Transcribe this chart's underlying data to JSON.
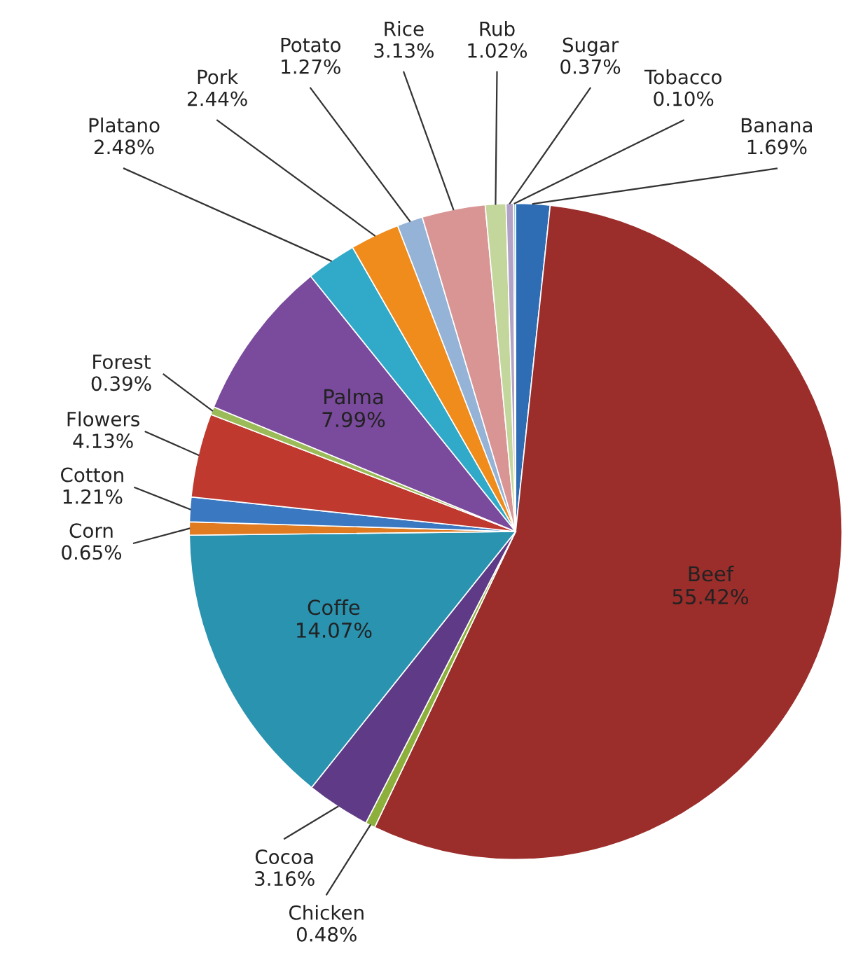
{
  "chart_data": {
    "type": "pie",
    "categories": [
      "Banana",
      "Beef",
      "Chicken",
      "Cocoa",
      "Coffe",
      "Corn",
      "Cotton",
      "Flowers",
      "Forest",
      "Palma",
      "Platano",
      "Pork",
      "Potato",
      "Rice",
      "Rub",
      "Sugar",
      "Tobacco"
    ],
    "values": [
      1.69,
      55.42,
      0.48,
      3.16,
      14.07,
      0.65,
      1.21,
      4.13,
      0.39,
      7.99,
      2.48,
      2.44,
      1.27,
      3.13,
      1.02,
      0.37,
      0.1
    ],
    "value_labels": [
      "1.69%",
      "55.42%",
      "0.48%",
      "3.16%",
      "14.07%",
      "0.65%",
      "1.21%",
      "4.13%",
      "0.39%",
      "7.99%",
      "2.48%",
      "2.44%",
      "1.27%",
      "3.13%",
      "1.02%",
      "0.37%",
      "0.10%"
    ],
    "colors": [
      "#2e6db4",
      "#9b2d2a",
      "#8db03c",
      "#5f3a86",
      "#2a93b0",
      "#e07b22",
      "#3a78c2",
      "#c0392f",
      "#9bbb59",
      "#7a4a9c",
      "#31a9c9",
      "#f08c1c",
      "#95b3d7",
      "#d99594",
      "#c3d69b",
      "#b3a2c7",
      "#92cddc"
    ]
  }
}
